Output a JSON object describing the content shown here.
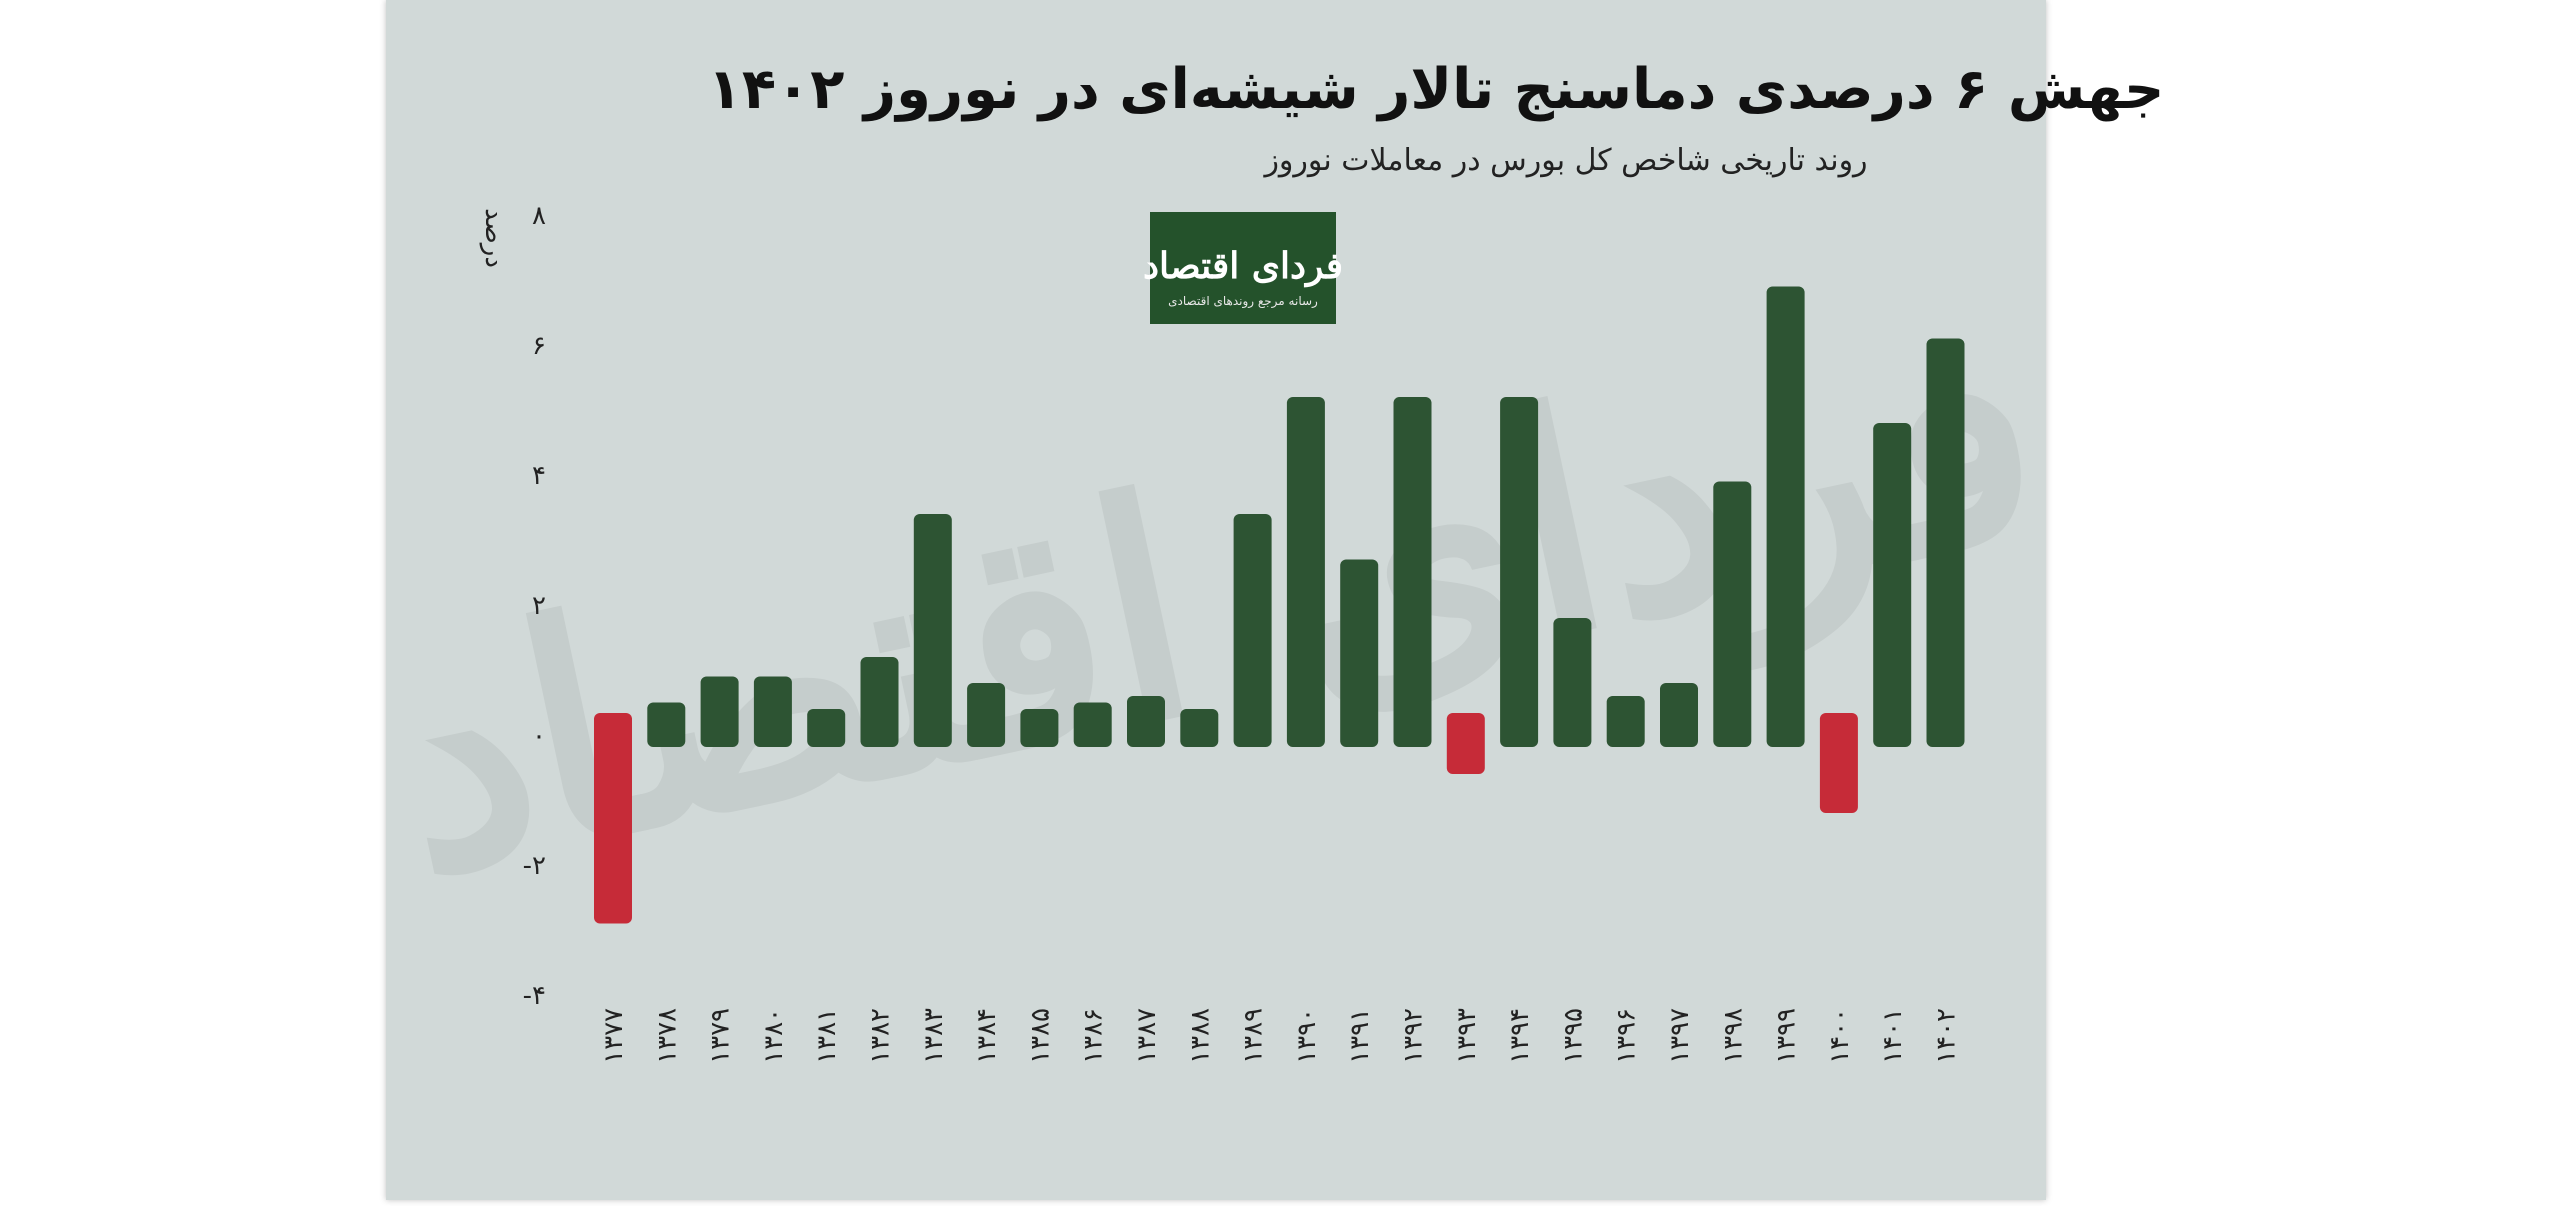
{
  "chart_data": {
    "type": "bar",
    "title": "جهش ۶ درصدی دماسنج تالار شیشه‌ای در نوروز ۱۴۰۲",
    "subtitle": "روند تاریخی شاخص کل بورس در معاملات نوروز",
    "ylabel": "درصد",
    "ylim": [
      -4,
      8
    ],
    "yticks": [
      8,
      6,
      4,
      2,
      0,
      -2,
      -4
    ],
    "ytick_labels": [
      "۸",
      "۶",
      "۴",
      "۲",
      "۰",
      "-۲",
      "-۴"
    ],
    "categories": [
      "۱۳۷۷",
      "۱۳۷۸",
      "۱۳۷۹",
      "۱۳۸۰",
      "۱۳۸۱",
      "۱۳۸۲",
      "۱۳۸۳",
      "۱۳۸۴",
      "۱۳۸۵",
      "۱۳۸۶",
      "۱۳۸۷",
      "۱۳۸۸",
      "۱۳۸۹",
      "۱۳۹۰",
      "۱۳۹۱",
      "۱۳۹۲",
      "۱۳۹۳",
      "۱۳۹۴",
      "۱۳۹۵",
      "۱۳۹۶",
      "۱۳۹۷",
      "۱۳۹۸",
      "۱۳۹۹",
      "۱۴۰۰",
      "۱۴۰۱",
      "۱۴۰۲"
    ],
    "values": [
      -2.9,
      0.5,
      0.9,
      0.9,
      0.4,
      1.2,
      3.4,
      0.8,
      0.4,
      0.5,
      0.6,
      0.4,
      3.4,
      5.2,
      2.7,
      5.2,
      -0.6,
      5.2,
      1.8,
      0.6,
      0.8,
      3.9,
      6.9,
      -1.2,
      4.8,
      6.1
    ],
    "grid": false,
    "legend": "none"
  },
  "colors": {
    "positive": "#2d5433",
    "negative": "#c62b38",
    "background": "#d1d9d8",
    "logo_background": "#24522b"
  },
  "logo": {
    "name": "فردای اقتصاد",
    "tagline": "رسانه مرجع روندهای اقتصادی"
  },
  "watermark": {
    "text": "فردای اقتصاد"
  }
}
